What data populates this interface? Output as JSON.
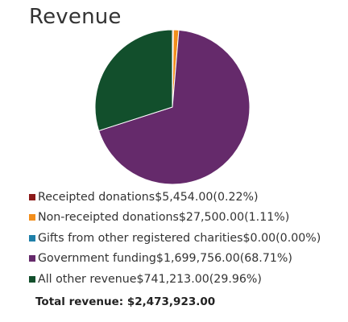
{
  "chart_data": {
    "type": "pie",
    "title": "Revenue",
    "slices": [
      {
        "name": "Receipted donations",
        "value": 5454.0,
        "percent": 0.22,
        "value_label": "$5,454.00",
        "percent_label": "(0.22%)",
        "color": "#8b1a1a"
      },
      {
        "name": "Non-receipted donations",
        "value": 27500.0,
        "percent": 1.11,
        "value_label": "$27,500.00",
        "percent_label": "(1.11%)",
        "color": "#f28e1c"
      },
      {
        "name": "Gifts from other registered charities",
        "value": 0.0,
        "percent": 0.0,
        "value_label": "$0.00",
        "percent_label": "(0.00%)",
        "color": "#1f7fa8"
      },
      {
        "name": "Government funding",
        "value": 1699756.0,
        "percent": 68.71,
        "value_label": "$1,699,756.00",
        "percent_label": "(68.71%)",
        "color": "#652a6b"
      },
      {
        "name": "All other revenue",
        "value": 741213.0,
        "percent": 29.96,
        "value_label": "$741,213.00",
        "percent_label": "(29.96%)",
        "color": "#124f2c"
      }
    ],
    "total_label": "Total revenue: $2,473,923.00",
    "legend_position": "bottom",
    "start_angle": "top, clockwise"
  },
  "colors": {
    "slice_border": "#ffffff",
    "text": "#333333"
  }
}
